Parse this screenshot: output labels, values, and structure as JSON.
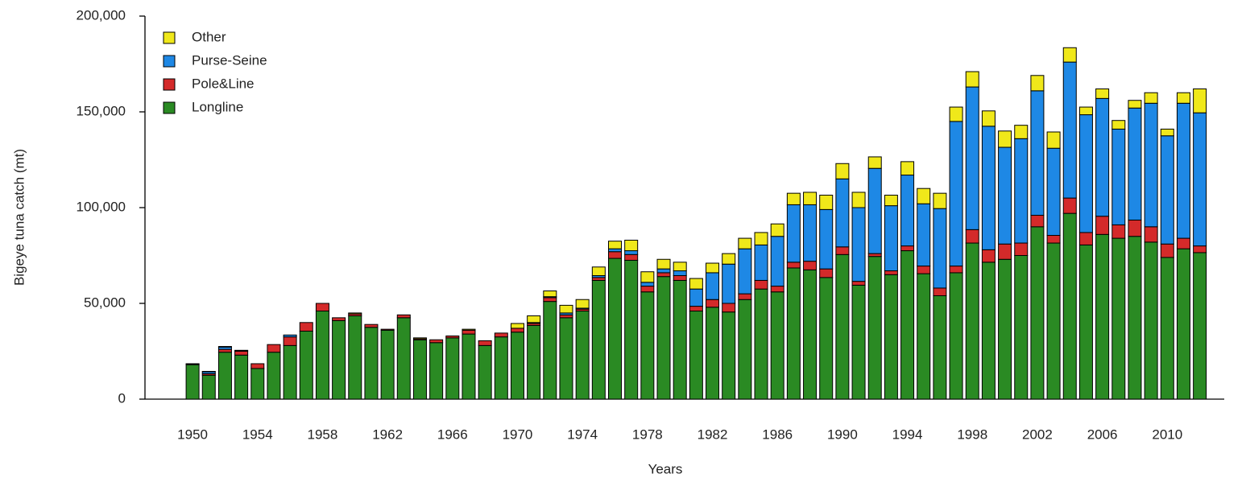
{
  "chart_data": {
    "type": "stacked-bar",
    "ylabel": "Bigeye tuna catch (mt)",
    "xlabel": "Years",
    "categories": [
      "1950",
      null,
      null,
      null,
      "1954",
      null,
      null,
      null,
      "1958",
      null,
      null,
      null,
      "1962",
      null,
      null,
      null,
      "1966",
      null,
      null,
      null,
      "1970",
      null,
      null,
      null,
      "1974",
      null,
      null,
      null,
      "1978",
      null,
      null,
      null,
      "1982",
      null,
      null,
      null,
      "1986",
      null,
      null,
      null,
      "1990",
      null,
      null,
      null,
      "1994",
      null,
      null,
      null,
      "1998",
      null,
      null,
      null,
      "2002",
      null,
      null,
      null,
      "2006",
      null,
      null,
      null,
      "2010",
      null,
      null
    ],
    "series": [
      {
        "name": "Longline",
        "color": "#2a8a23",
        "values": [
          18000,
          12500,
          24500,
          23000,
          16000,
          24500,
          28000,
          35500,
          46000,
          41000,
          43500,
          37500,
          36000,
          42500,
          31000,
          29500,
          32000,
          34000,
          28000,
          32500,
          35000,
          38500,
          51000,
          42500,
          46000,
          62000,
          73500,
          72500,
          56000,
          64000,
          62000,
          46000,
          48000,
          45500,
          52000,
          57500,
          56000,
          68500,
          67500,
          63500,
          75500,
          59500,
          74500,
          65000,
          77500,
          65500,
          54000,
          66000,
          81500,
          71500,
          73000,
          75000,
          90000,
          81500,
          97000,
          80500,
          86000,
          84000,
          85000,
          82000,
          74000,
          78500,
          76500
        ]
      },
      {
        "name": "Pole&Line",
        "color": "#d42a2a",
        "values": [
          300,
          800,
          1500,
          2000,
          2500,
          4000,
          4500,
          4500,
          4000,
          1500,
          1000,
          1500,
          500,
          1500,
          500,
          1500,
          1000,
          2000,
          2500,
          2000,
          2000,
          1000,
          2000,
          1500,
          1000,
          1500,
          3500,
          3000,
          3000,
          2000,
          2500,
          2500,
          4000,
          4500,
          3000,
          4500,
          3000,
          3000,
          4500,
          4500,
          4000,
          2000,
          1500,
          2000,
          2500,
          4000,
          4000,
          3500,
          7000,
          6500,
          8000,
          6500,
          6000,
          4000,
          8000,
          6500,
          9500,
          7000,
          8500,
          8000,
          7000,
          5500,
          3500
        ]
      },
      {
        "name": "Purse-Seine",
        "color": "#1e88e5",
        "values": [
          0,
          1000,
          1200,
          300,
          0,
          0,
          1000,
          0,
          0,
          0,
          0,
          0,
          0,
          0,
          0,
          0,
          0,
          0,
          0,
          0,
          0,
          500,
          500,
          1000,
          500,
          1000,
          1500,
          2000,
          2000,
          2000,
          2500,
          9000,
          14000,
          20500,
          23500,
          18500,
          26000,
          30000,
          29500,
          31000,
          35500,
          38500,
          44500,
          34000,
          37000,
          32500,
          41500,
          75500,
          74500,
          64500,
          50500,
          54500,
          65000,
          45500,
          71000,
          61500,
          61500,
          50000,
          58500,
          64500,
          56500,
          70500,
          69500
        ]
      },
      {
        "name": "Other",
        "color": "#f0e81a",
        "values": [
          200,
          200,
          300,
          200,
          0,
          0,
          0,
          0,
          0,
          0,
          500,
          0,
          0,
          0,
          500,
          0,
          0,
          500,
          0,
          0,
          2500,
          3500,
          3000,
          4000,
          4500,
          4500,
          4000,
          5500,
          5500,
          5000,
          4500,
          5500,
          5000,
          5500,
          5500,
          6500,
          6500,
          6000,
          6500,
          7500,
          8000,
          8000,
          6000,
          5500,
          7000,
          8000,
          8000,
          7500,
          8000,
          8000,
          8500,
          7000,
          8000,
          8500,
          7500,
          4000,
          5000,
          4500,
          4000,
          5500,
          3500,
          5500,
          12500
        ]
      }
    ],
    "ylim": [
      0,
      200000
    ],
    "yticks": [
      0,
      {
        "value": 50000,
        "label": "50,000"
      },
      {
        "value": 100000,
        "label": "100,000"
      },
      {
        "value": 150000,
        "label": "150,000"
      },
      {
        "value": 200000,
        "label": "200,000"
      }
    ],
    "legend": "top-left"
  }
}
